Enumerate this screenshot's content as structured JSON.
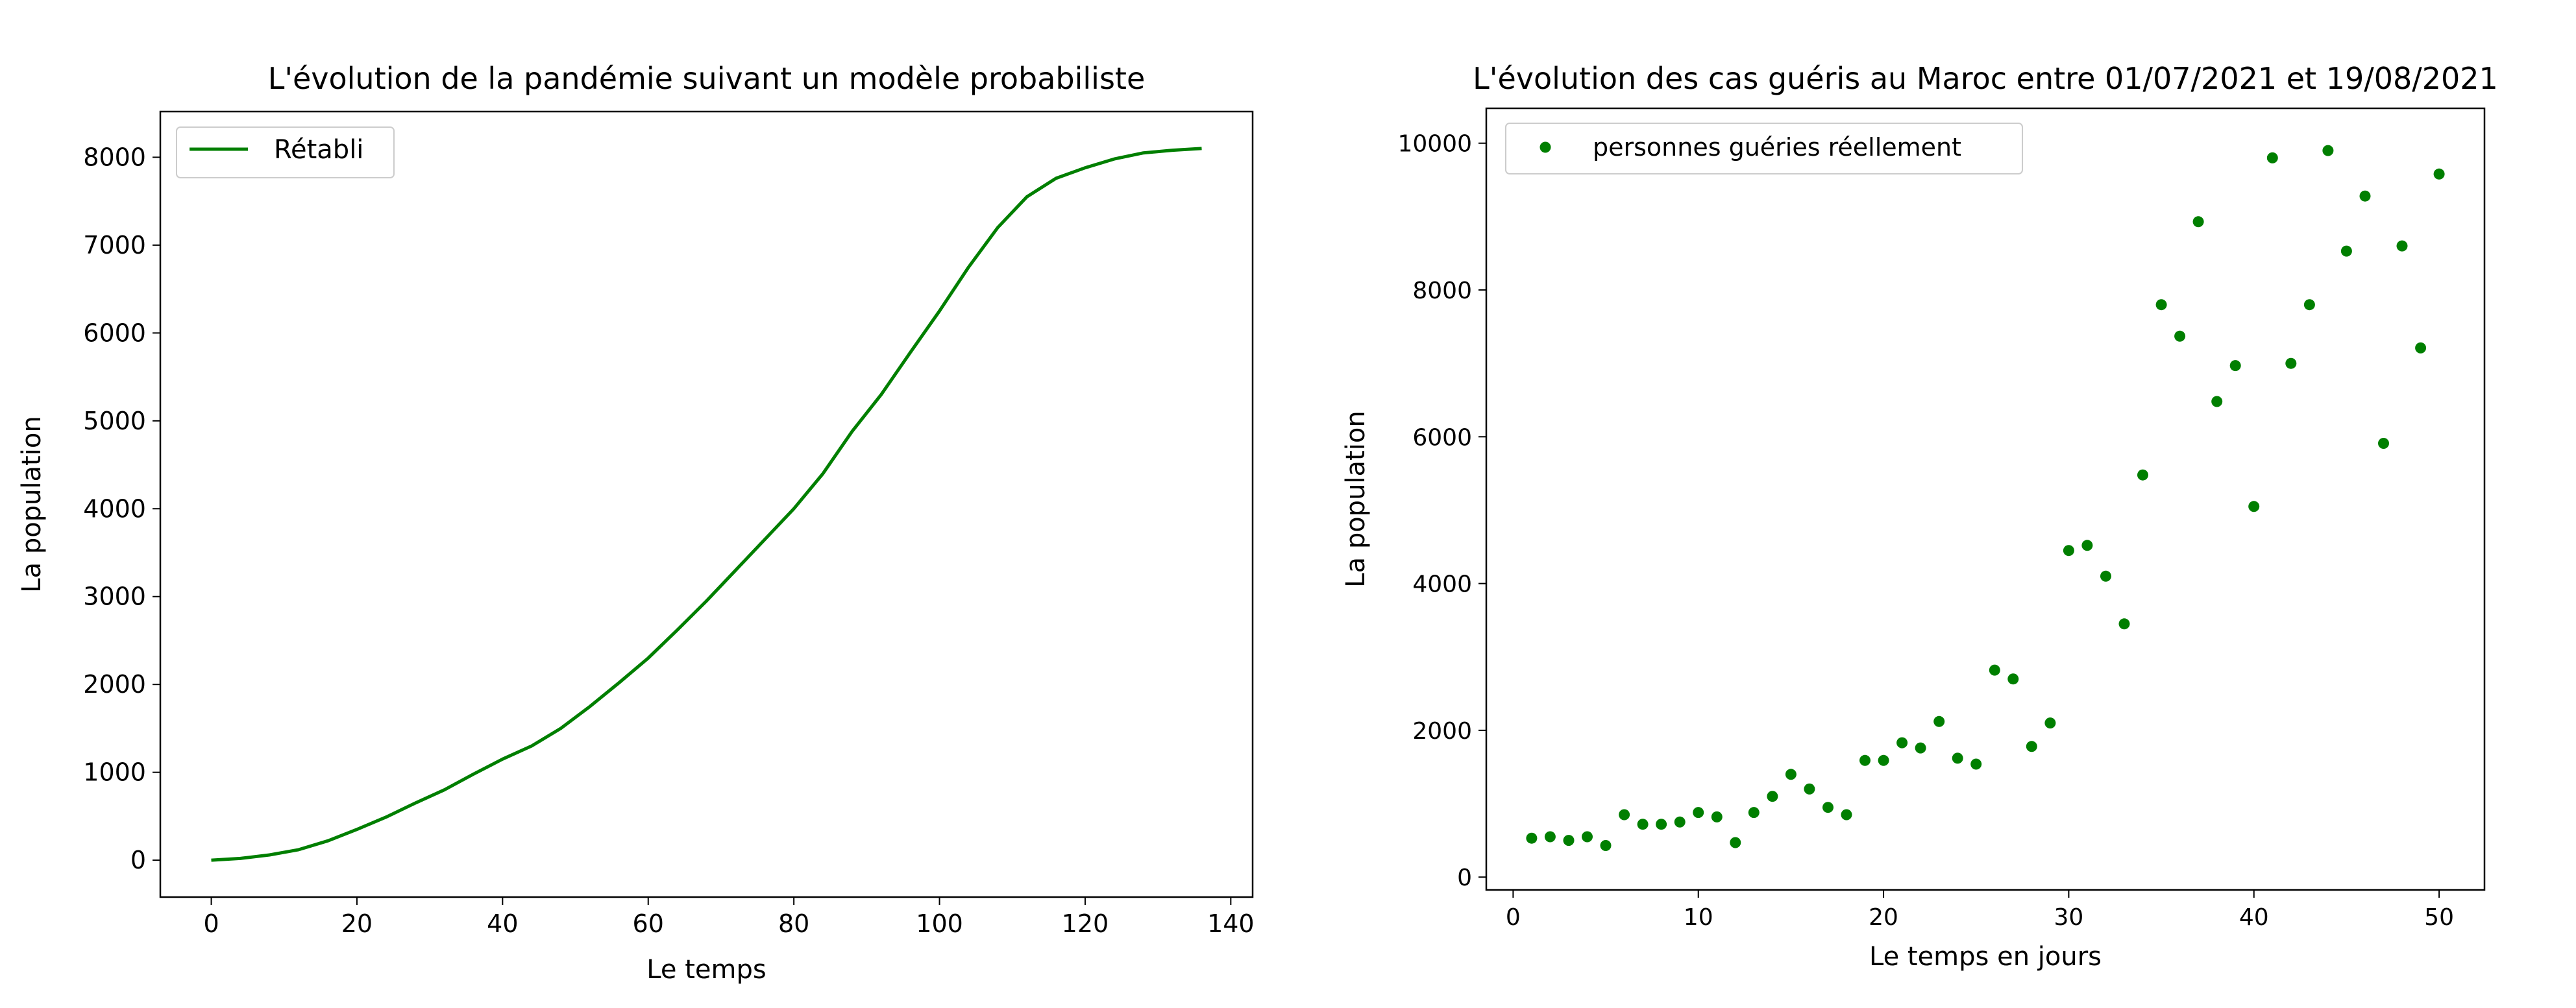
{
  "chart_data": [
    {
      "type": "line",
      "title": "L'évolution de la pandémie suivant un modèle probabiliste",
      "xlabel": "Le temps",
      "ylabel": "La population",
      "xlim": [
        -7,
        143
      ],
      "ylim": [
        -420,
        8520
      ],
      "xticks": [
        0,
        20,
        40,
        60,
        80,
        100,
        120,
        140
      ],
      "yticks": [
        0,
        1000,
        2000,
        3000,
        4000,
        5000,
        6000,
        7000,
        8000
      ],
      "legend_position": "upper left",
      "grid": false,
      "series": [
        {
          "name": "Rétabli",
          "color": "#007f00",
          "x": [
            0,
            4,
            8,
            12,
            16,
            20,
            24,
            28,
            32,
            36,
            40,
            44,
            48,
            52,
            56,
            60,
            64,
            68,
            72,
            76,
            80,
            84,
            88,
            92,
            96,
            100,
            104,
            108,
            112,
            116,
            120,
            124,
            128,
            132,
            136
          ],
          "y": [
            0,
            20,
            60,
            120,
            220,
            350,
            490,
            650,
            800,
            980,
            1150,
            1300,
            1500,
            1750,
            2020,
            2300,
            2620,
            2950,
            3300,
            3650,
            4000,
            4400,
            4880,
            5300,
            5780,
            6250,
            6750,
            7200,
            7550,
            7760,
            7880,
            7980,
            8050,
            8080,
            8100
          ]
        }
      ]
    },
    {
      "type": "scatter",
      "title": "L'évolution des cas guéris au Maroc entre 01/07/2021 et 19/08/2021",
      "xlabel": "Le temps en jours",
      "ylabel": "La population",
      "xlim": [
        -1.45,
        52.45
      ],
      "ylim": [
        -175,
        10475
      ],
      "xticks": [
        0,
        10,
        20,
        30,
        40,
        50
      ],
      "yticks": [
        0,
        2000,
        4000,
        6000,
        8000,
        10000
      ],
      "legend_position": "upper left",
      "grid": false,
      "series": [
        {
          "name": "personnes guéries réellement",
          "color": "#007f00",
          "x": [
            1,
            2,
            3,
            4,
            5,
            6,
            7,
            8,
            9,
            10,
            11,
            12,
            13,
            14,
            15,
            16,
            17,
            18,
            19,
            20,
            21,
            22,
            23,
            24,
            25,
            26,
            27,
            28,
            29,
            30,
            31,
            32,
            33,
            34,
            35,
            36,
            37,
            38,
            39,
            40,
            41,
            42,
            43,
            44,
            45,
            46,
            47,
            48,
            49,
            50
          ],
          "y": [
            530,
            550,
            500,
            550,
            430,
            850,
            720,
            720,
            750,
            880,
            820,
            470,
            880,
            1100,
            1400,
            1200,
            950,
            850,
            1590,
            1590,
            1830,
            1760,
            2120,
            1620,
            1540,
            2820,
            2700,
            1780,
            2100,
            4450,
            4520,
            4100,
            3450,
            5480,
            7800,
            7370,
            8930,
            6480,
            6970,
            5050,
            9800,
            7000,
            7800,
            9900,
            8530,
            9280,
            5910,
            8600,
            7210,
            9580
          ]
        }
      ]
    }
  ]
}
